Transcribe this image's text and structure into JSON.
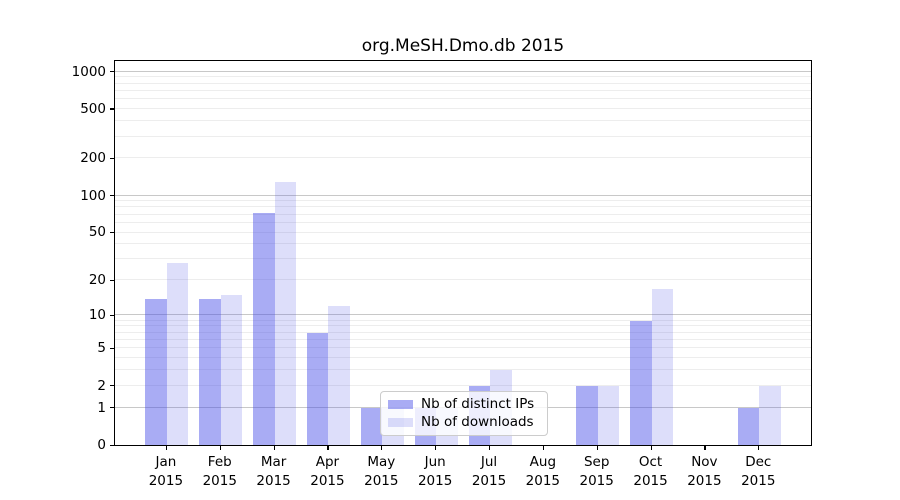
{
  "title": "org.MeSH.Dmo.db 2015",
  "chart_data": {
    "type": "bar",
    "categories": [
      "Jan 2015",
      "Feb 2015",
      "Mar 2015",
      "Apr 2015",
      "May 2015",
      "Jun 2015",
      "Jul 2015",
      "Aug 2015",
      "Sep 2015",
      "Oct 2015",
      "Nov 2015",
      "Dec 2015"
    ],
    "months": [
      "Jan",
      "Feb",
      "Mar",
      "Apr",
      "May",
      "Jun",
      "Jul",
      "Aug",
      "Sep",
      "Oct",
      "Nov",
      "Dec"
    ],
    "year": "2015",
    "series": [
      {
        "name": "Nb of distinct IPs",
        "color": "rgba(64,70,230,0.45)",
        "values": [
          14,
          14,
          72,
          7,
          1,
          1,
          2,
          0,
          2,
          9,
          0,
          1
        ]
      },
      {
        "name": "Nb of downloads",
        "color": "rgba(64,70,230,0.18)",
        "values": [
          28,
          15,
          128,
          12,
          1,
          1,
          3,
          0,
          2,
          17,
          0,
          2
        ]
      }
    ],
    "title": "org.MeSH.Dmo.db 2015",
    "xlabel": "",
    "ylabel": "",
    "yaxis": {
      "scale": "log1p",
      "ylim": [
        0,
        1250
      ],
      "tick_labels": [
        "0",
        "1",
        "2",
        "5",
        "10",
        "20",
        "50",
        "100",
        "200",
        "500",
        "1000"
      ],
      "tick_values": [
        0,
        1,
        2,
        5,
        10,
        20,
        50,
        100,
        200,
        500,
        1000
      ],
      "major_gridlines": [
        1,
        10,
        100,
        1000
      ],
      "minor_gridlines": [
        2,
        3,
        4,
        5,
        6,
        7,
        8,
        9,
        20,
        30,
        40,
        50,
        60,
        70,
        80,
        90,
        200,
        300,
        400,
        500,
        600,
        700,
        800,
        900
      ]
    },
    "grid": true,
    "legend_position": "lower-center"
  },
  "colors": {
    "bar_distinct_ips": "rgba(64,70,230,0.45)",
    "bar_downloads": "rgba(64,70,230,0.18)",
    "major_grid": "#c8c8c8",
    "minor_grid": "#ededed",
    "spine": "#000000",
    "legend_border": "#cccccc",
    "text": "#000000"
  }
}
